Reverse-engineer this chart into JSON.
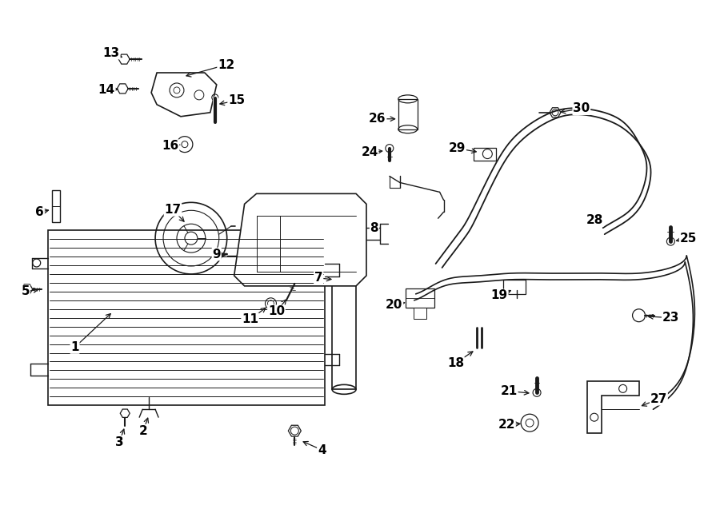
{
  "background_color": "#ffffff",
  "line_color": "#1a1a1a",
  "text_color": "#000000",
  "fig_width": 9.0,
  "fig_height": 6.62,
  "dpi": 100
}
